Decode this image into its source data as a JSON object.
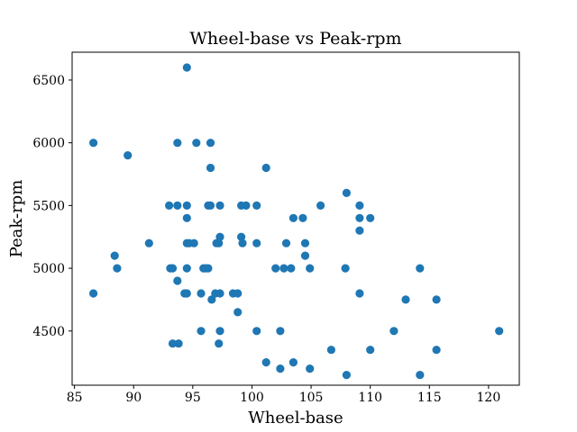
{
  "colors": {
    "marker": "#1f77b4",
    "axes": "#000000",
    "background": "#ffffff"
  },
  "chart_data": {
    "type": "scatter",
    "title": "Wheel-base vs Peak-rpm",
    "xlabel": "Wheel-base",
    "ylabel": "Peak-rpm",
    "xlim": [
      84.8,
      122.6
    ],
    "ylim": [
      4068,
      6722
    ],
    "xticks": [
      85,
      90,
      95,
      100,
      105,
      110,
      115,
      120
    ],
    "yticks": [
      4500,
      5000,
      5500,
      6000,
      6500
    ],
    "grid": false,
    "points": [
      [
        86.6,
        6000
      ],
      [
        86.6,
        4800
      ],
      [
        88.4,
        5100
      ],
      [
        88.6,
        5000
      ],
      [
        89.5,
        5900
      ],
      [
        91.3,
        5200
      ],
      [
        93.0,
        5500
      ],
      [
        93.1,
        5000
      ],
      [
        93.3,
        5000
      ],
      [
        93.3,
        4400
      ],
      [
        93.7,
        6000
      ],
      [
        93.7,
        5500
      ],
      [
        93.7,
        4900
      ],
      [
        93.8,
        4400
      ],
      [
        94.3,
        4800
      ],
      [
        94.5,
        6600
      ],
      [
        94.5,
        5500
      ],
      [
        94.5,
        5400
      ],
      [
        94.5,
        5200
      ],
      [
        94.5,
        5000
      ],
      [
        94.5,
        4800
      ],
      [
        94.7,
        5200
      ],
      [
        95.1,
        5200
      ],
      [
        95.3,
        6000
      ],
      [
        95.7,
        4500
      ],
      [
        95.7,
        4800
      ],
      [
        95.9,
        5000
      ],
      [
        96.1,
        5000
      ],
      [
        96.3,
        5000
      ],
      [
        96.3,
        5500
      ],
      [
        96.5,
        6000
      ],
      [
        96.5,
        5800
      ],
      [
        96.5,
        5500
      ],
      [
        96.6,
        4750
      ],
      [
        96.9,
        4800
      ],
      [
        97.0,
        5200
      ],
      [
        97.2,
        4400
      ],
      [
        97.2,
        5200
      ],
      [
        97.3,
        5250
      ],
      [
        97.3,
        5500
      ],
      [
        97.3,
        4500
      ],
      [
        97.3,
        4800
      ],
      [
        98.4,
        4800
      ],
      [
        98.8,
        4650
      ],
      [
        98.8,
        4800
      ],
      [
        99.1,
        5500
      ],
      [
        99.1,
        5250
      ],
      [
        99.2,
        5200
      ],
      [
        99.5,
        5500
      ],
      [
        100.4,
        5500
      ],
      [
        100.4,
        5200
      ],
      [
        100.4,
        4500
      ],
      [
        101.2,
        5800
      ],
      [
        101.2,
        4250
      ],
      [
        102.0,
        5000
      ],
      [
        102.4,
        4500
      ],
      [
        102.4,
        4200
      ],
      [
        102.7,
        5000
      ],
      [
        102.9,
        5200
      ],
      [
        103.3,
        5000
      ],
      [
        103.5,
        5400
      ],
      [
        103.5,
        4250
      ],
      [
        104.3,
        5400
      ],
      [
        104.5,
        5200
      ],
      [
        104.5,
        5100
      ],
      [
        104.9,
        4200
      ],
      [
        104.9,
        5000
      ],
      [
        105.8,
        5500
      ],
      [
        106.7,
        4350
      ],
      [
        107.9,
        5000
      ],
      [
        108.0,
        5600
      ],
      [
        108.0,
        4150
      ],
      [
        109.1,
        5500
      ],
      [
        109.1,
        5400
      ],
      [
        109.1,
        5300
      ],
      [
        109.1,
        4800
      ],
      [
        110.0,
        5400
      ],
      [
        110.0,
        4350
      ],
      [
        112.0,
        4500
      ],
      [
        113.0,
        4750
      ],
      [
        114.2,
        5000
      ],
      [
        114.2,
        4150
      ],
      [
        115.6,
        4750
      ],
      [
        115.6,
        4350
      ],
      [
        120.9,
        4500
      ]
    ]
  }
}
